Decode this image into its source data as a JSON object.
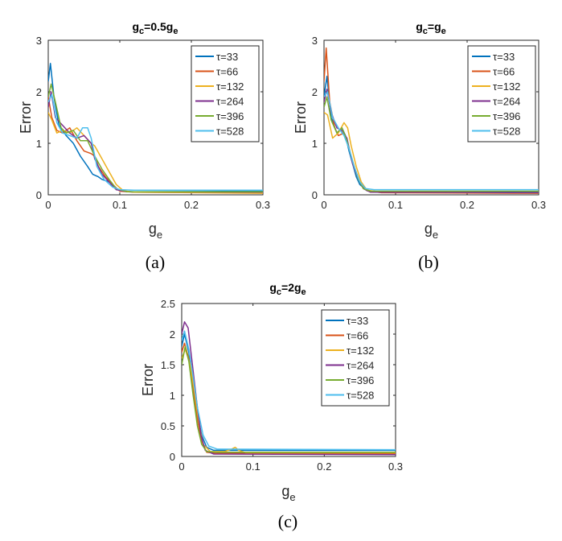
{
  "chart_data": [
    {
      "type": "line",
      "panel_label": "(a)",
      "title": {
        "base": "g",
        "sub1": "c",
        "mid": "=0.5g",
        "sub2": "e"
      },
      "xlabel": {
        "base": "g",
        "sub": "e"
      },
      "ylabel": "Error",
      "xlim": [
        0,
        0.3
      ],
      "ylim": [
        0,
        3
      ],
      "xticks": [
        "0",
        "0.1",
        "0.2",
        "0.3"
      ],
      "yticks": [
        "0",
        "1",
        "2",
        "3"
      ],
      "legend_position": "top-right",
      "series": [
        {
          "name": "τ=33",
          "color": "#0072BD",
          "points": [
            [
              0,
              2.2
            ],
            [
              0.003,
              2.55
            ],
            [
              0.008,
              1.9
            ],
            [
              0.015,
              1.35
            ],
            [
              0.025,
              1.15
            ],
            [
              0.035,
              1.0
            ],
            [
              0.045,
              0.75
            ],
            [
              0.055,
              0.55
            ],
            [
              0.062,
              0.4
            ],
            [
              0.07,
              0.35
            ],
            [
              0.075,
              0.3
            ],
            [
              0.085,
              0.25
            ],
            [
              0.095,
              0.12
            ],
            [
              0.105,
              0.07
            ],
            [
              0.12,
              0.06
            ],
            [
              0.3,
              0.07
            ]
          ]
        },
        {
          "name": "τ=66",
          "color": "#D95319",
          "points": [
            [
              0,
              1.9
            ],
            [
              0.005,
              1.5
            ],
            [
              0.012,
              1.25
            ],
            [
              0.02,
              1.2
            ],
            [
              0.03,
              1.3
            ],
            [
              0.04,
              1.05
            ],
            [
              0.05,
              0.85
            ],
            [
              0.06,
              0.8
            ],
            [
              0.065,
              0.75
            ],
            [
              0.07,
              0.55
            ],
            [
              0.08,
              0.35
            ],
            [
              0.09,
              0.2
            ],
            [
              0.1,
              0.07
            ],
            [
              0.12,
              0.05
            ],
            [
              0.3,
              0.04
            ]
          ]
        },
        {
          "name": "τ=132",
          "color": "#EDB120",
          "points": [
            [
              0,
              1.6
            ],
            [
              0.005,
              1.45
            ],
            [
              0.012,
              1.2
            ],
            [
              0.02,
              1.25
            ],
            [
              0.03,
              1.2
            ],
            [
              0.04,
              1.3
            ],
            [
              0.05,
              1.15
            ],
            [
              0.06,
              1.0
            ],
            [
              0.065,
              0.95
            ],
            [
              0.075,
              0.7
            ],
            [
              0.085,
              0.45
            ],
            [
              0.095,
              0.2
            ],
            [
              0.105,
              0.08
            ],
            [
              0.12,
              0.05
            ],
            [
              0.3,
              0.03
            ]
          ]
        },
        {
          "name": "τ=264",
          "color": "#7E2F8E",
          "points": [
            [
              0,
              1.7
            ],
            [
              0.004,
              2.0
            ],
            [
              0.01,
              1.5
            ],
            [
              0.02,
              1.35
            ],
            [
              0.03,
              1.2
            ],
            [
              0.04,
              1.1
            ],
            [
              0.05,
              1.15
            ],
            [
              0.06,
              1.0
            ],
            [
              0.065,
              0.7
            ],
            [
              0.075,
              0.4
            ],
            [
              0.085,
              0.25
            ],
            [
              0.095,
              0.1
            ],
            [
              0.11,
              0.06
            ],
            [
              0.3,
              0.05
            ]
          ]
        },
        {
          "name": "τ=396",
          "color": "#77AC30",
          "points": [
            [
              0,
              1.9
            ],
            [
              0.004,
              2.15
            ],
            [
              0.01,
              1.8
            ],
            [
              0.018,
              1.3
            ],
            [
              0.025,
              1.2
            ],
            [
              0.035,
              1.25
            ],
            [
              0.045,
              1.05
            ],
            [
              0.055,
              1.05
            ],
            [
              0.06,
              0.9
            ],
            [
              0.065,
              0.75
            ],
            [
              0.075,
              0.5
            ],
            [
              0.085,
              0.3
            ],
            [
              0.095,
              0.12
            ],
            [
              0.11,
              0.06
            ],
            [
              0.3,
              0.06
            ]
          ]
        },
        {
          "name": "τ=528",
          "color": "#4DBEEE",
          "points": [
            [
              0,
              1.8
            ],
            [
              0.005,
              1.95
            ],
            [
              0.012,
              1.4
            ],
            [
              0.02,
              1.2
            ],
            [
              0.03,
              1.15
            ],
            [
              0.04,
              1.1
            ],
            [
              0.048,
              1.3
            ],
            [
              0.055,
              1.3
            ],
            [
              0.06,
              1.1
            ],
            [
              0.068,
              0.55
            ],
            [
              0.078,
              0.3
            ],
            [
              0.09,
              0.15
            ],
            [
              0.1,
              0.1
            ],
            [
              0.12,
              0.09
            ],
            [
              0.3,
              0.09
            ]
          ]
        }
      ]
    },
    {
      "type": "line",
      "panel_label": "(b)",
      "title": {
        "base": "g",
        "sub1": "c",
        "mid": "=g",
        "sub2": "e"
      },
      "xlabel": {
        "base": "g",
        "sub": "e"
      },
      "ylabel": "Error",
      "xlim": [
        0,
        0.3
      ],
      "ylim": [
        0,
        3
      ],
      "xticks": [
        "0",
        "0.1",
        "0.2",
        "0.3"
      ],
      "yticks": [
        "0",
        "1",
        "2",
        "3"
      ],
      "legend_position": "top-right",
      "series": [
        {
          "name": "τ=33",
          "color": "#0072BD",
          "points": [
            [
              0,
              1.9
            ],
            [
              0.004,
              2.3
            ],
            [
              0.01,
              1.5
            ],
            [
              0.018,
              1.2
            ],
            [
              0.025,
              1.3
            ],
            [
              0.03,
              1.15
            ],
            [
              0.035,
              0.85
            ],
            [
              0.04,
              0.6
            ],
            [
              0.045,
              0.35
            ],
            [
              0.05,
              0.2
            ],
            [
              0.06,
              0.08
            ],
            [
              0.08,
              0.06
            ],
            [
              0.3,
              0.06
            ]
          ]
        },
        {
          "name": "τ=66",
          "color": "#D95319",
          "points": [
            [
              0,
              2.2
            ],
            [
              0.003,
              2.85
            ],
            [
              0.008,
              1.8
            ],
            [
              0.015,
              1.3
            ],
            [
              0.02,
              1.15
            ],
            [
              0.028,
              1.2
            ],
            [
              0.035,
              0.9
            ],
            [
              0.042,
              0.55
            ],
            [
              0.05,
              0.25
            ],
            [
              0.06,
              0.08
            ],
            [
              0.08,
              0.04
            ],
            [
              0.3,
              0.03
            ]
          ]
        },
        {
          "name": "τ=132",
          "color": "#EDB120",
          "points": [
            [
              0,
              1.6
            ],
            [
              0.005,
              1.55
            ],
            [
              0.012,
              1.1
            ],
            [
              0.02,
              1.2
            ],
            [
              0.028,
              1.4
            ],
            [
              0.033,
              1.3
            ],
            [
              0.038,
              0.95
            ],
            [
              0.045,
              0.55
            ],
            [
              0.052,
              0.25
            ],
            [
              0.06,
              0.09
            ],
            [
              0.08,
              0.05
            ],
            [
              0.3,
              0.04
            ]
          ]
        },
        {
          "name": "τ=264",
          "color": "#7E2F8E",
          "points": [
            [
              0,
              1.8
            ],
            [
              0.004,
              2.05
            ],
            [
              0.01,
              1.6
            ],
            [
              0.018,
              1.3
            ],
            [
              0.025,
              1.25
            ],
            [
              0.032,
              1.1
            ],
            [
              0.04,
              0.6
            ],
            [
              0.048,
              0.3
            ],
            [
              0.055,
              0.12
            ],
            [
              0.065,
              0.05
            ],
            [
              0.3,
              0.04
            ]
          ]
        },
        {
          "name": "τ=396",
          "color": "#77AC30",
          "points": [
            [
              0,
              1.7
            ],
            [
              0.004,
              1.9
            ],
            [
              0.01,
              1.45
            ],
            [
              0.018,
              1.2
            ],
            [
              0.025,
              1.3
            ],
            [
              0.032,
              1.05
            ],
            [
              0.04,
              0.65
            ],
            [
              0.048,
              0.3
            ],
            [
              0.055,
              0.12
            ],
            [
              0.065,
              0.07
            ],
            [
              0.3,
              0.07
            ]
          ]
        },
        {
          "name": "τ=528",
          "color": "#4DBEEE",
          "points": [
            [
              0,
              1.9
            ],
            [
              0.005,
              2.0
            ],
            [
              0.012,
              1.5
            ],
            [
              0.02,
              1.3
            ],
            [
              0.028,
              1.15
            ],
            [
              0.035,
              0.9
            ],
            [
              0.042,
              0.55
            ],
            [
              0.05,
              0.25
            ],
            [
              0.058,
              0.12
            ],
            [
              0.07,
              0.1
            ],
            [
              0.3,
              0.1
            ]
          ]
        }
      ]
    },
    {
      "type": "line",
      "panel_label": "(c)",
      "title": {
        "base": "g",
        "sub1": "c",
        "mid": "=2g",
        "sub2": "e"
      },
      "xlabel": {
        "base": "g",
        "sub": "e"
      },
      "ylabel": "Error",
      "xlim": [
        0,
        0.3
      ],
      "ylim": [
        0,
        2.5
      ],
      "xticks": [
        "0",
        "0.1",
        "0.2",
        "0.3"
      ],
      "yticks": [
        "0",
        "0.5",
        "1",
        "1.5",
        "2",
        "2.5"
      ],
      "legend_position": "top-right",
      "series": [
        {
          "name": "τ=33",
          "color": "#0072BD",
          "points": [
            [
              0,
              1.8
            ],
            [
              0.004,
              2.0
            ],
            [
              0.01,
              1.7
            ],
            [
              0.016,
              1.2
            ],
            [
              0.022,
              0.7
            ],
            [
              0.028,
              0.35
            ],
            [
              0.035,
              0.15
            ],
            [
              0.045,
              0.1
            ],
            [
              0.3,
              0.1
            ]
          ]
        },
        {
          "name": "τ=66",
          "color": "#D95319",
          "points": [
            [
              0,
              1.7
            ],
            [
              0.004,
              1.85
            ],
            [
              0.01,
              1.6
            ],
            [
              0.016,
              1.1
            ],
            [
              0.022,
              0.6
            ],
            [
              0.028,
              0.25
            ],
            [
              0.035,
              0.07
            ],
            [
              0.05,
              0.05
            ],
            [
              0.3,
              0.05
            ]
          ]
        },
        {
          "name": "τ=132",
          "color": "#EDB120",
          "points": [
            [
              0,
              1.6
            ],
            [
              0.005,
              1.75
            ],
            [
              0.012,
              1.5
            ],
            [
              0.018,
              1.05
            ],
            [
              0.024,
              0.55
            ],
            [
              0.03,
              0.2
            ],
            [
              0.04,
              0.08
            ],
            [
              0.06,
              0.08
            ],
            [
              0.07,
              0.12
            ],
            [
              0.075,
              0.15
            ],
            [
              0.08,
              0.1
            ],
            [
              0.09,
              0.06
            ],
            [
              0.3,
              0.06
            ]
          ]
        },
        {
          "name": "τ=264",
          "color": "#7E2F8E",
          "points": [
            [
              0,
              2.0
            ],
            [
              0.004,
              2.2
            ],
            [
              0.009,
              2.1
            ],
            [
              0.015,
              1.5
            ],
            [
              0.021,
              0.9
            ],
            [
              0.027,
              0.35
            ],
            [
              0.033,
              0.1
            ],
            [
              0.045,
              0.04
            ],
            [
              0.3,
              0.03
            ]
          ]
        },
        {
          "name": "τ=396",
          "color": "#77AC30",
          "points": [
            [
              0,
              1.5
            ],
            [
              0.005,
              1.8
            ],
            [
              0.01,
              1.55
            ],
            [
              0.016,
              1.0
            ],
            [
              0.022,
              0.5
            ],
            [
              0.028,
              0.2
            ],
            [
              0.035,
              0.08
            ],
            [
              0.05,
              0.07
            ],
            [
              0.3,
              0.07
            ]
          ]
        },
        {
          "name": "τ=528",
          "color": "#4DBEEE",
          "points": [
            [
              0,
              1.9
            ],
            [
              0.004,
              2.05
            ],
            [
              0.01,
              1.75
            ],
            [
              0.016,
              1.3
            ],
            [
              0.022,
              0.8
            ],
            [
              0.03,
              0.35
            ],
            [
              0.038,
              0.17
            ],
            [
              0.05,
              0.12
            ],
            [
              0.3,
              0.11
            ]
          ]
        }
      ]
    }
  ]
}
